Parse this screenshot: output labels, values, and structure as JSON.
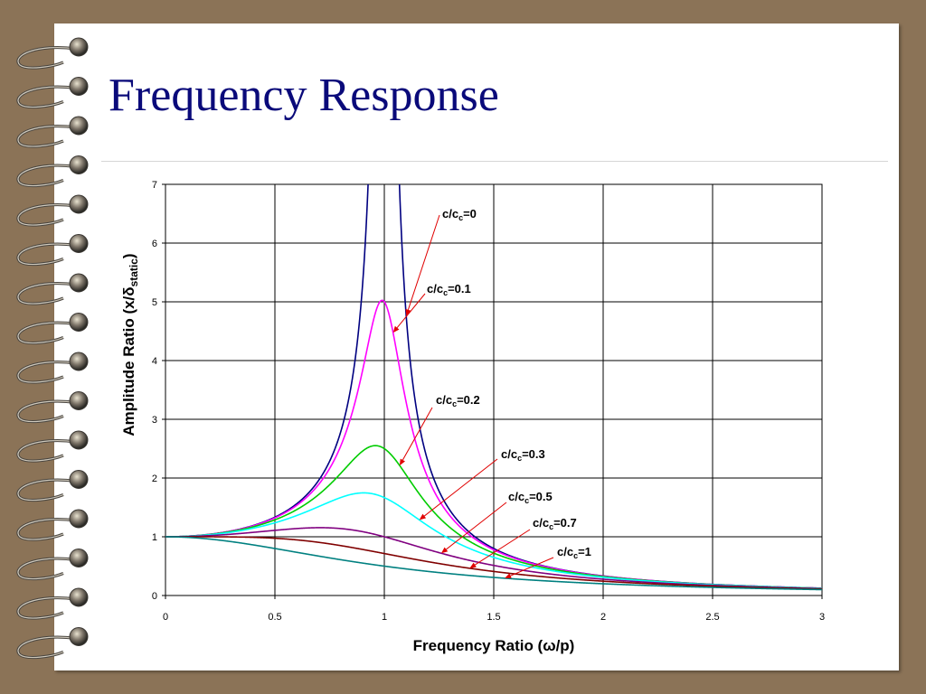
{
  "slide": {
    "title": "Frequency Response"
  },
  "colors": {
    "background": "#8b7357",
    "page": "#ffffff",
    "title": "#0a0a7a",
    "arrow": "#e00000"
  },
  "chart_data": {
    "type": "line",
    "title": "",
    "xlabel": "Frequency Ratio (ω/p)",
    "ylabel": "Amplitude Ratio (x/δstatic)",
    "xlim": [
      0,
      3
    ],
    "ylim": [
      0,
      7
    ],
    "x_ticks": [
      "0",
      "0.5",
      "1",
      "1.5",
      "2",
      "2.5",
      "3"
    ],
    "y_ticks": [
      "0",
      "1",
      "2",
      "3",
      "4",
      "5",
      "6",
      "7"
    ],
    "grid": true,
    "formula": "1/sqrt((1-r^2)^2+(2*zeta*r)^2)",
    "series": [
      {
        "name": "c/cc=0",
        "zeta": 0,
        "color": "#000080",
        "label_prefix": "c/c",
        "label_sub": "c",
        "label_suffix": "=0",
        "arrow_at": 1.1
      },
      {
        "name": "c/cc=0.1",
        "zeta": 0.1,
        "color": "#ff00ff",
        "label_prefix": "c/c",
        "label_sub": "c",
        "label_suffix": "=0.1",
        "arrow_at": 1.04
      },
      {
        "name": "c/cc=0.2",
        "zeta": 0.2,
        "color": "#00cc00",
        "label_prefix": "c/c",
        "label_sub": "c",
        "label_suffix": "=0.2",
        "arrow_at": 1.07
      },
      {
        "name": "c/cc=0.3",
        "zeta": 0.3,
        "color": "#00ffff",
        "label_prefix": "c/c",
        "label_sub": "c",
        "label_suffix": "=0.3",
        "arrow_at": 1.16
      },
      {
        "name": "c/cc=0.5",
        "zeta": 0.5,
        "color": "#800080",
        "label_prefix": "c/c",
        "label_sub": "c",
        "label_suffix": "=0.5",
        "arrow_at": 1.26
      },
      {
        "name": "c/cc=0.7",
        "zeta": 0.7,
        "color": "#800000",
        "label_prefix": "c/c",
        "label_sub": "c",
        "label_suffix": "=0.7",
        "arrow_at": 1.39
      },
      {
        "name": "c/cc=1",
        "zeta": 1.0,
        "color": "#008080",
        "label_prefix": "c/c",
        "label_sub": "c",
        "label_suffix": "=1",
        "arrow_at": 1.55
      }
    ]
  }
}
